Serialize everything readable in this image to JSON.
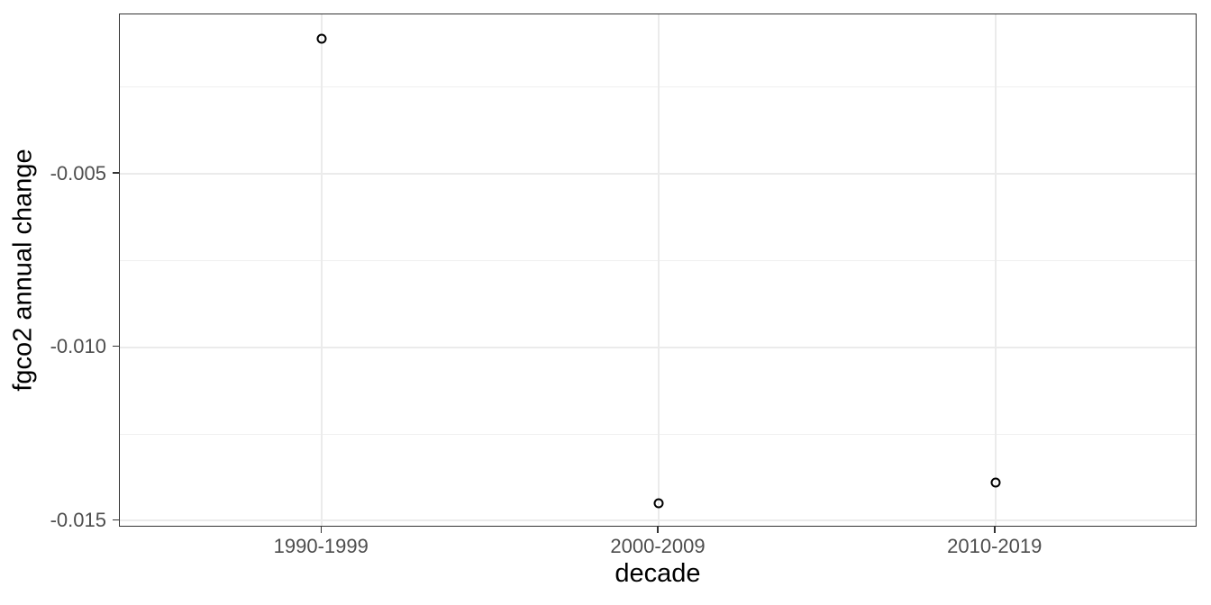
{
  "chart_data": {
    "type": "scatter",
    "title": "",
    "xlabel": "decade",
    "ylabel": "fgco2 annual change",
    "categories": [
      "1990-1999",
      "2000-2009",
      "2010-2019"
    ],
    "values": [
      -0.0011,
      -0.0145,
      -0.0139
    ],
    "ylim": [
      -0.0152,
      -0.0004
    ],
    "yticks": [
      -0.005,
      -0.01,
      -0.015
    ],
    "ytick_labels": [
      "-0.005",
      "-0.010",
      "-0.015"
    ],
    "yminor_ticks": [
      -0.0025,
      -0.0075,
      -0.0125
    ],
    "grid": true,
    "legend": false,
    "point_style": "open-circle",
    "theme": "ggplot2-bw",
    "colors": {
      "background": "#ffffff",
      "panel_border": "#333333",
      "grid_major": "#ebebeb",
      "grid_minor": "#f0f0f0",
      "tick_text": "#4d4d4d",
      "axis_title_text": "#000000",
      "point_stroke": "#000000"
    }
  }
}
